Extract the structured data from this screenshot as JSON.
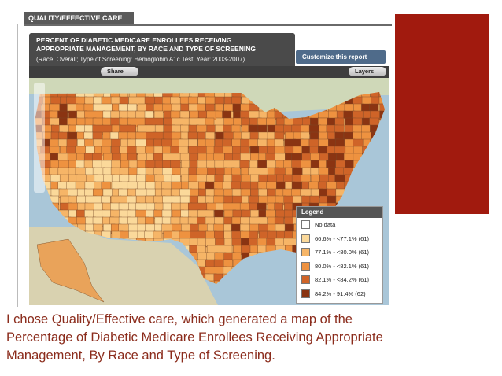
{
  "header": "QUALITY/EFFECTIVE CARE",
  "report": {
    "title_lines": [
      "PERCENT OF DIABETIC MEDICARE ENROLLEES RECEIVING",
      "APPROPRIATE MANAGEMENT, BY RACE AND TYPE OF SCREENING"
    ],
    "subtitle": "(Race: Overall; Type of Screening: Hemoglobin A1c Test; Year: 2003-2007)",
    "customize_button": "Customize this report",
    "share_button": "Share",
    "layers_button": "Layers"
  },
  "legend": {
    "title": "Legend",
    "items": [
      {
        "label": "No data",
        "color": "#ffffff"
      },
      {
        "label": "66.6% - <77.1% (61)",
        "color": "#fbd99a"
      },
      {
        "label": "77.1% - <80.0% (61)",
        "color": "#f6b567"
      },
      {
        "label": "80.0% - <82.1% (61)",
        "color": "#ee9240"
      },
      {
        "label": "82.1% - <84.2% (61)",
        "color": "#cf6428"
      },
      {
        "label": "84.2% - 91.4% (62)",
        "color": "#8a3412"
      }
    ]
  },
  "caption_lines": [
    "I chose Quality/Effective care, which generated a map of the",
    "Percentage of Diabetic Medicare Enrollees Receiving Appropriate",
    "Management, By Race and Type of Screening."
  ]
}
